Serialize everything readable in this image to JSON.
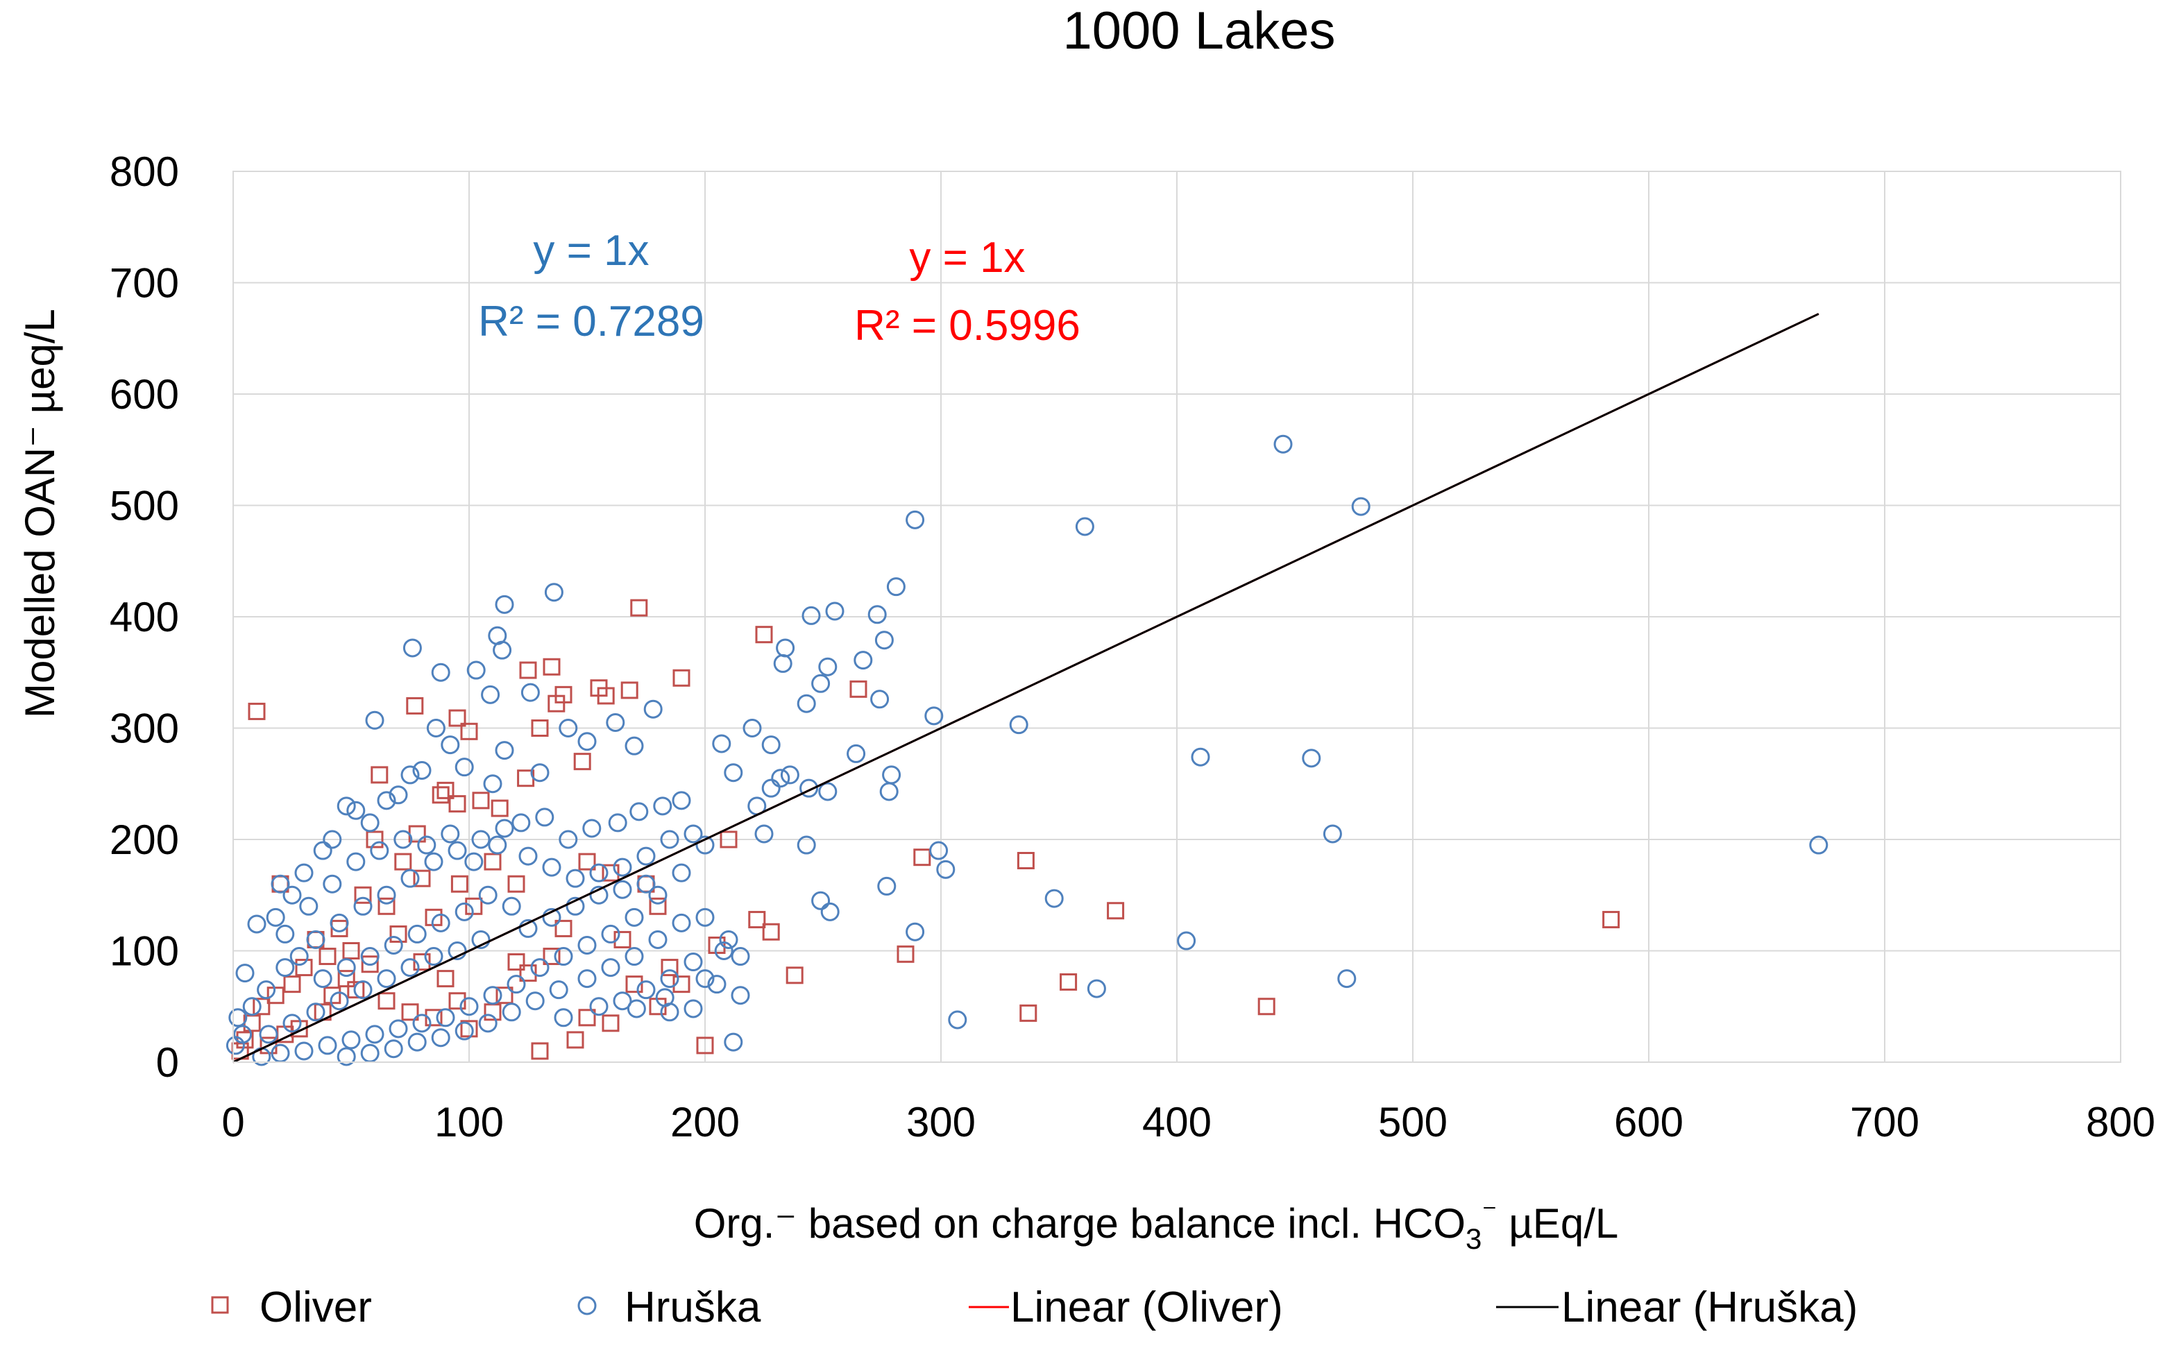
{
  "chart_data": {
    "type": "scatter",
    "title": "1000 Lakes",
    "xlabel": "Org.⁻ based on charge balance incl. HCO",
    "xlabel_sub": "3",
    "xlabel_sup": "⁻",
    "xlabel_tail": " µEq/L",
    "ylabel": "Modelled  OAN⁻ µeq/L",
    "xlim": [
      0,
      800
    ],
    "ylim": [
      0,
      800
    ],
    "xticks": [
      0,
      100,
      200,
      300,
      400,
      500,
      600,
      700,
      800
    ],
    "yticks": [
      0,
      100,
      200,
      300,
      400,
      500,
      600,
      700,
      800
    ],
    "grid": true,
    "legend_position": "bottom",
    "series": [
      {
        "name": "Oliver",
        "marker": "square",
        "color": "#C0504D",
        "points": [
          [
            10,
            315
          ],
          [
            172,
            408
          ],
          [
            135,
            355
          ],
          [
            168,
            334
          ],
          [
            155,
            336
          ],
          [
            190,
            345
          ],
          [
            225,
            384
          ],
          [
            265,
            335
          ],
          [
            125,
            352
          ],
          [
            158,
            329
          ],
          [
            140,
            330
          ],
          [
            130,
            300
          ],
          [
            137,
            322
          ],
          [
            95,
            309
          ],
          [
            77,
            320
          ],
          [
            100,
            297
          ],
          [
            62,
            258
          ],
          [
            20,
            160
          ],
          [
            124,
            255
          ],
          [
            148,
            270
          ],
          [
            88,
            240
          ],
          [
            95,
            232
          ],
          [
            90,
            244
          ],
          [
            105,
            235
          ],
          [
            113,
            228
          ],
          [
            60,
            200
          ],
          [
            72,
            180
          ],
          [
            80,
            165
          ],
          [
            55,
            150
          ],
          [
            65,
            140
          ],
          [
            85,
            130
          ],
          [
            45,
            120
          ],
          [
            35,
            110
          ],
          [
            40,
            95
          ],
          [
            30,
            85
          ],
          [
            25,
            70
          ],
          [
            18,
            60
          ],
          [
            12,
            50
          ],
          [
            8,
            35
          ],
          [
            5,
            20
          ],
          [
            3,
            10
          ],
          [
            50,
            100
          ],
          [
            70,
            115
          ],
          [
            58,
            88
          ],
          [
            110,
            180
          ],
          [
            120,
            160
          ],
          [
            150,
            180
          ],
          [
            160,
            170
          ],
          [
            175,
            160
          ],
          [
            180,
            140
          ],
          [
            165,
            110
          ],
          [
            170,
            70
          ],
          [
            185,
            85
          ],
          [
            190,
            70
          ],
          [
            180,
            50
          ],
          [
            200,
            15
          ],
          [
            130,
            10
          ],
          [
            145,
            20
          ],
          [
            150,
            40
          ],
          [
            160,
            35
          ],
          [
            110,
            45
          ],
          [
            115,
            60
          ],
          [
            100,
            30
          ],
          [
            95,
            55
          ],
          [
            90,
            75
          ],
          [
            80,
            90
          ],
          [
            210,
            200
          ],
          [
            205,
            105
          ],
          [
            222,
            128
          ],
          [
            228,
            117
          ],
          [
            238,
            78
          ],
          [
            292,
            184
          ],
          [
            336,
            181
          ],
          [
            374,
            136
          ],
          [
            285,
            97
          ],
          [
            354,
            72
          ],
          [
            337,
            44
          ],
          [
            438,
            50
          ],
          [
            584,
            128
          ],
          [
            42,
            60
          ],
          [
            38,
            45
          ],
          [
            28,
            30
          ],
          [
            22,
            25
          ],
          [
            15,
            15
          ],
          [
            48,
            75
          ],
          [
            52,
            65
          ],
          [
            65,
            55
          ],
          [
            75,
            45
          ],
          [
            85,
            40
          ],
          [
            120,
            90
          ],
          [
            125,
            80
          ],
          [
            135,
            95
          ],
          [
            140,
            120
          ],
          [
            102,
            140
          ],
          [
            96,
            160
          ],
          [
            78,
            205
          ]
        ]
      },
      {
        "name": "Hruška",
        "marker": "circle",
        "color": "#4F81BD",
        "points": [
          [
            445,
            555
          ],
          [
            478,
            499
          ],
          [
            289,
            487
          ],
          [
            361,
            481
          ],
          [
            281,
            427
          ],
          [
            136,
            422
          ],
          [
            115,
            411
          ],
          [
            273,
            402
          ],
          [
            255,
            405
          ],
          [
            245,
            401
          ],
          [
            276,
            379
          ],
          [
            112,
            383
          ],
          [
            114,
            370
          ],
          [
            234,
            372
          ],
          [
            252,
            355
          ],
          [
            233,
            358
          ],
          [
            249,
            340
          ],
          [
            267,
            361
          ],
          [
            76,
            372
          ],
          [
            88,
            350
          ],
          [
            103,
            352
          ],
          [
            109,
            330
          ],
          [
            126,
            332
          ],
          [
            274,
            326
          ],
          [
            243,
            322
          ],
          [
            297,
            311
          ],
          [
            333,
            303
          ],
          [
            410,
            274
          ],
          [
            457,
            273
          ],
          [
            466,
            205
          ],
          [
            672,
            195
          ],
          [
            299,
            190
          ],
          [
            302,
            173
          ],
          [
            277,
            158
          ],
          [
            348,
            147
          ],
          [
            289,
            117
          ],
          [
            404,
            109
          ],
          [
            472,
            75
          ],
          [
            366,
            66
          ],
          [
            307,
            38
          ],
          [
            212,
            18
          ],
          [
            185,
            45
          ],
          [
            220,
            300
          ],
          [
            228,
            285
          ],
          [
            207,
            286
          ],
          [
            212,
            260
          ],
          [
            228,
            246
          ],
          [
            222,
            230
          ],
          [
            244,
            246
          ],
          [
            252,
            243
          ],
          [
            236,
            258
          ],
          [
            232,
            255
          ],
          [
            225,
            205
          ],
          [
            243,
            195
          ],
          [
            249,
            145
          ],
          [
            253,
            135
          ],
          [
            278,
            243
          ],
          [
            279,
            258
          ],
          [
            264,
            277
          ],
          [
            178,
            317
          ],
          [
            170,
            284
          ],
          [
            162,
            305
          ],
          [
            150,
            288
          ],
          [
            142,
            300
          ],
          [
            130,
            260
          ],
          [
            115,
            280
          ],
          [
            60,
            307
          ],
          [
            75,
            258
          ],
          [
            80,
            262
          ],
          [
            48,
            230
          ],
          [
            52,
            226
          ],
          [
            58,
            215
          ],
          [
            42,
            200
          ],
          [
            38,
            190
          ],
          [
            30,
            170
          ],
          [
            25,
            150
          ],
          [
            18,
            130
          ],
          [
            20,
            160
          ],
          [
            10,
            124
          ],
          [
            5,
            80
          ],
          [
            2,
            40
          ],
          [
            1,
            15
          ],
          [
            4,
            25
          ],
          [
            8,
            50
          ],
          [
            14,
            65
          ],
          [
            22,
            85
          ],
          [
            28,
            95
          ],
          [
            35,
            110
          ],
          [
            45,
            125
          ],
          [
            55,
            140
          ],
          [
            65,
            150
          ],
          [
            75,
            165
          ],
          [
            85,
            180
          ],
          [
            95,
            190
          ],
          [
            105,
            200
          ],
          [
            115,
            210
          ],
          [
            125,
            185
          ],
          [
            135,
            175
          ],
          [
            145,
            165
          ],
          [
            155,
            170
          ],
          [
            165,
            175
          ],
          [
            175,
            185
          ],
          [
            185,
            200
          ],
          [
            195,
            205
          ],
          [
            200,
            195
          ],
          [
            190,
            170
          ],
          [
            180,
            150
          ],
          [
            170,
            130
          ],
          [
            160,
            115
          ],
          [
            150,
            105
          ],
          [
            140,
            95
          ],
          [
            130,
            85
          ],
          [
            120,
            70
          ],
          [
            110,
            60
          ],
          [
            100,
            50
          ],
          [
            90,
            40
          ],
          [
            80,
            35
          ],
          [
            70,
            30
          ],
          [
            60,
            25
          ],
          [
            50,
            20
          ],
          [
            40,
            15
          ],
          [
            30,
            10
          ],
          [
            20,
            8
          ],
          [
            12,
            5
          ],
          [
            140,
            40
          ],
          [
            155,
            50
          ],
          [
            165,
            55
          ],
          [
            175,
            65
          ],
          [
            185,
            75
          ],
          [
            195,
            90
          ],
          [
            205,
            70
          ],
          [
            215,
            60
          ],
          [
            210,
            110
          ],
          [
            200,
            130
          ],
          [
            190,
            125
          ],
          [
            180,
            110
          ],
          [
            170,
            95
          ],
          [
            160,
            85
          ],
          [
            150,
            75
          ],
          [
            138,
            65
          ],
          [
            128,
            55
          ],
          [
            118,
            45
          ],
          [
            108,
            35
          ],
          [
            98,
            28
          ],
          [
            88,
            22
          ],
          [
            78,
            18
          ],
          [
            68,
            12
          ],
          [
            58,
            8
          ],
          [
            48,
            5
          ],
          [
            105,
            110
          ],
          [
            95,
            100
          ],
          [
            85,
            95
          ],
          [
            75,
            85
          ],
          [
            65,
            75
          ],
          [
            55,
            65
          ],
          [
            45,
            55
          ],
          [
            35,
            45
          ],
          [
            25,
            35
          ],
          [
            15,
            25
          ],
          [
            125,
            120
          ],
          [
            135,
            130
          ],
          [
            145,
            140
          ],
          [
            155,
            150
          ],
          [
            165,
            155
          ],
          [
            175,
            160
          ],
          [
            118,
            140
          ],
          [
            108,
            150
          ],
          [
            98,
            135
          ],
          [
            88,
            125
          ],
          [
            78,
            115
          ],
          [
            68,
            105
          ],
          [
            58,
            95
          ],
          [
            48,
            85
          ],
          [
            38,
            75
          ],
          [
            200,
            75
          ],
          [
            215,
            95
          ],
          [
            208,
            100
          ],
          [
            195,
            48
          ],
          [
            183,
            58
          ],
          [
            171,
            48
          ],
          [
            190,
            235
          ],
          [
            182,
            230
          ],
          [
            172,
            225
          ],
          [
            163,
            215
          ],
          [
            152,
            210
          ],
          [
            142,
            200
          ],
          [
            132,
            220
          ],
          [
            122,
            215
          ],
          [
            112,
            195
          ],
          [
            102,
            180
          ],
          [
            92,
            205
          ],
          [
            82,
            195
          ],
          [
            72,
            200
          ],
          [
            62,
            190
          ],
          [
            52,
            180
          ],
          [
            42,
            160
          ],
          [
            32,
            140
          ],
          [
            22,
            115
          ],
          [
            110,
            250
          ],
          [
            98,
            265
          ],
          [
            92,
            285
          ],
          [
            86,
            300
          ],
          [
            70,
            240
          ],
          [
            65,
            235
          ]
        ]
      }
    ],
    "trendlines": [
      {
        "name": "Linear (Oliver)",
        "color": "#FF0000",
        "equation": "y = 1x",
        "r2": 0.5996,
        "r2_label": "R² = 0.5996",
        "x_range": [
          0,
          672
        ]
      },
      {
        "name": "Linear (Hruška)",
        "color": "#000000",
        "equation": "y = 1x",
        "r2": 0.7289,
        "r2_label": "R² = 0.7289",
        "x_range": [
          0,
          672
        ]
      }
    ],
    "annotations": [
      {
        "series": "Hruška",
        "color": "#2E75B6",
        "equation": "y = 1x",
        "r2_label": "R² = 0.7289"
      },
      {
        "series": "Oliver",
        "color": "#FF0000",
        "equation": "y = 1x",
        "r2_label": "R² = 0.5996"
      }
    ],
    "legend": [
      {
        "label": "Oliver",
        "kind": "square",
        "color": "#C0504D"
      },
      {
        "label": "Hruška",
        "kind": "circle",
        "color": "#4F81BD"
      },
      {
        "label": "Linear (Oliver)",
        "kind": "line",
        "color": "#FF0000"
      },
      {
        "label": "Linear (Hruška)",
        "kind": "line",
        "color": "#000000"
      }
    ]
  }
}
